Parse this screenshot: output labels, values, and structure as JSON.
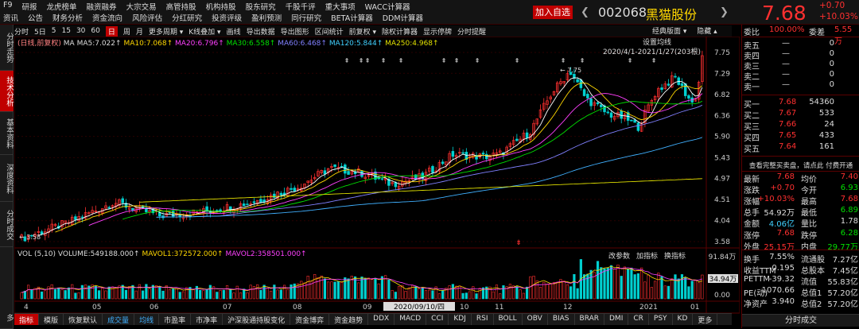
{
  "menu_row1": [
    "F9",
    "研报",
    "龙虎榜单",
    "融资融券",
    "大宗交易",
    "高管持股",
    "机构持股",
    "股东研究",
    "千股千评",
    "重大事项",
    "WACC计算器"
  ],
  "menu_row2": [
    "资讯",
    "公告",
    "财务分析",
    "资金流向",
    "风险评估",
    "分红研究",
    "投资评级",
    "盈利预测",
    "同行研究",
    "BETA计算器",
    "DDM计算器"
  ],
  "add_fav": "加入自选",
  "stock": {
    "code": "002068",
    "name": "黑猫股份",
    "price": "7.68",
    "change": "+0.70",
    "pct": "+10.03%"
  },
  "left_tabs": [
    "分时走势",
    "技术分析",
    "基本资料",
    "深度资料",
    "分时成交",
    "多"
  ],
  "toolbar": [
    "分时",
    "5日",
    "5",
    "15",
    "30",
    "60",
    "日",
    "周",
    "月",
    "更多周期 ▾",
    "K线叠加 ▾",
    "画线",
    "导出数据",
    "导出图形",
    "区间统计",
    "前复权 ▾",
    "除权计算器",
    "显示停牌",
    "分时提醒"
  ],
  "toolbar_selected": "日",
  "toolbar_right": {
    "classic": "经典版面 ▾",
    "hide": "隐藏 ▴"
  },
  "ma_legend": {
    "mode": "(日线,前复权)",
    "ma5": "MA5:7.022↑",
    "ma10": "MA10:7.068↑",
    "ma20": "MA20:6.796↑",
    "ma30": "MA30:6.558↑",
    "ma60": "MA60:6.468↑",
    "ma120": "MA120:5.844↑",
    "ma250": "MA250:4.968↑"
  },
  "set_ma": "设置均线",
  "date_range": "2020/4/1-2021/1/27(203根)",
  "colors": {
    "up": "#ff3030",
    "down": "#00d0d0",
    "ma5": "#ffffff",
    "ma10": "#ffd700",
    "ma20": "#ff40ff",
    "ma30": "#00e000",
    "ma60": "#8080ff",
    "ma120": "#40b0ff",
    "ma250": "#e0e000"
  },
  "chart_data": {
    "type": "candlestick",
    "dates_label": [
      "4",
      "05",
      "06",
      "07",
      "08",
      "09",
      "2020/09/10/四",
      "10",
      "11",
      "12",
      "2021",
      "01"
    ],
    "y_ticks": [
      "7.75",
      "7.29",
      "6.82",
      "6.36",
      "5.90",
      "5.43",
      "4.97",
      "4.51",
      "4.04",
      "3.58"
    ],
    "ylim": [
      3.58,
      7.75
    ],
    "high_label": "7.75",
    "low_label": "3.58",
    "vol_ticks": [
      "91.84万",
      "34.94万",
      "0.00"
    ],
    "current_price_marker": "7.68"
  },
  "vol_legend": {
    "title": "VOL (5,10)",
    "volume": "VOLUME:549188.000↑",
    "mavol1": "MAVOL1:372572.000↑",
    "mavol2": "MAVOL2:358501.000↑"
  },
  "vol_btns": [
    "改参数",
    "加指标",
    "换指标"
  ],
  "bottom_tabs": [
    "指标",
    "模版",
    "恢复默认",
    "成交量",
    "均线",
    "市盈率",
    "市净率",
    "沪深股通持股变化",
    "资金博弈",
    "资金趋势",
    "DDX",
    "MACD",
    "CCI",
    "KDJ",
    "RSI",
    "BOLL",
    "OBV",
    "BIAS",
    "BRAR",
    "DMI",
    "CR",
    "PSY",
    "KD",
    "更多"
  ],
  "bottom_selected": "指标",
  "right": {
    "wb": {
      "label": "委比",
      "v1": "100.00%",
      "lbl2": "委差",
      "v2": "5.55万"
    },
    "sells": [
      {
        "l": "卖五",
        "p": "—",
        "v": "0"
      },
      {
        "l": "卖四",
        "p": "—",
        "v": "0"
      },
      {
        "l": "卖三",
        "p": "—",
        "v": "0"
      },
      {
        "l": "卖二",
        "p": "—",
        "v": "0"
      },
      {
        "l": "卖一",
        "p": "—",
        "v": "0"
      }
    ],
    "buys": [
      {
        "l": "买一",
        "p": "7.68",
        "v": "54360"
      },
      {
        "l": "买二",
        "p": "7.67",
        "v": "533"
      },
      {
        "l": "买三",
        "p": "7.66",
        "v": "24"
      },
      {
        "l": "买四",
        "p": "7.65",
        "v": "433"
      },
      {
        "l": "买五",
        "p": "7.64",
        "v": "161"
      }
    ],
    "order_note": "查看完整买卖盘，请点此 付费开通",
    "stats": [
      {
        "a": "最新",
        "av": "7.68",
        "b": "均价",
        "bv": "7.40"
      },
      {
        "a": "涨跌",
        "av": "+0.70",
        "b": "今开",
        "bv": "6.93"
      },
      {
        "a": "涨幅",
        "av": "+10.03%",
        "b": "最高",
        "bv": "7.68"
      },
      {
        "a": "总手",
        "av": "54.92万",
        "b": "最低",
        "bv": "6.89"
      },
      {
        "a": "金额",
        "av": "4.06亿",
        "b": "量比",
        "bv": "1.78"
      },
      {
        "a": "涨停",
        "av": "7.68",
        "b": "跌停",
        "bv": "6.28"
      },
      {
        "a": "外盘",
        "av": "25.15万",
        "b": "内盘",
        "bv": "29.77万"
      },
      {
        "a": "换手",
        "av": "7.55%",
        "b": "流通股",
        "bv": "7.27亿"
      },
      {
        "a": "收益TTM",
        "av": "-0.195",
        "b": "总股本",
        "bv": "7.45亿"
      },
      {
        "a": "PETTM",
        "av": "-39.32",
        "b": "流值",
        "bv": "55.83亿"
      },
      {
        "a": "PE(动)",
        "av": "1070.66",
        "b": "总值1",
        "bv": "57.20亿"
      },
      {
        "a": "净资产",
        "av": "3.940",
        "b": "总值2",
        "bv": "57.20亿"
      }
    ],
    "fenshi": "分时成交"
  }
}
